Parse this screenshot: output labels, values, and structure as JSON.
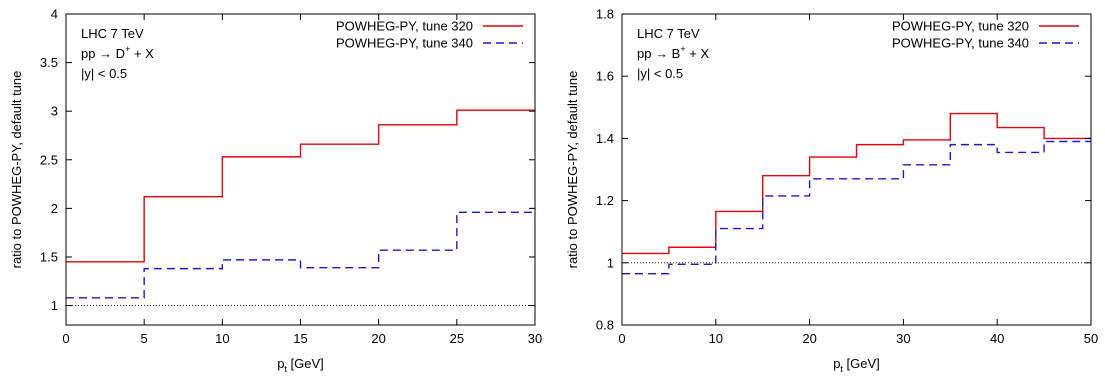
{
  "colors": {
    "tune320": "#e8000b",
    "tune340": "#1a1acc",
    "reference": "#000000"
  },
  "chart_data": [
    {
      "type": "line",
      "step": true,
      "xlabel_main": "p",
      "xlabel_sub": "t",
      "xlabel_rest": " [GeV]",
      "ylabel": "ratio to POWHEG-PY, default tune",
      "xlim": [
        0,
        30
      ],
      "ylim": [
        0.8,
        4
      ],
      "xticks": [
        "0",
        "5",
        "10",
        "15",
        "20",
        "25",
        "30"
      ],
      "yticks": [
        "1",
        "1.5",
        "2",
        "2.5",
        "3",
        "3.5",
        "4"
      ],
      "annotations": {
        "line1": "LHC 7 TeV",
        "line2_pre": "pp → D",
        "line2_sup": "+",
        "line2_post": " + X",
        "line3": "|y| < 0.5"
      },
      "reference_line": 1,
      "bin_edges": [
        0,
        5,
        10,
        15,
        20,
        25,
        30
      ],
      "series": [
        {
          "name": "POWHEG-PY, tune 320",
          "style": "solid",
          "values": [
            1.45,
            2.12,
            2.53,
            2.66,
            2.86,
            3.01
          ]
        },
        {
          "name": "POWHEG-PY, tune 340",
          "style": "dashed",
          "values": [
            1.08,
            1.38,
            1.47,
            1.39,
            1.57,
            1.96
          ]
        }
      ],
      "legend": "top-right"
    },
    {
      "type": "line",
      "step": true,
      "xlabel_main": "p",
      "xlabel_sub": "t",
      "xlabel_rest": " [GeV]",
      "ylabel": "ratio to POWHEG-PY, default tune",
      "xlim": [
        0,
        50
      ],
      "ylim": [
        0.8,
        1.8
      ],
      "xticks": [
        "0",
        "10",
        "20",
        "30",
        "40",
        "50"
      ],
      "yticks": [
        "0.8",
        "1",
        "1.2",
        "1.4",
        "1.6",
        "1.8"
      ],
      "annotations": {
        "line1": "LHC 7 TeV",
        "line2_pre": "pp → B",
        "line2_sup": "+",
        "line2_post": " + X",
        "line3": "|y| < 0.5"
      },
      "reference_line": 1,
      "bin_edges": [
        0,
        5,
        10,
        15,
        20,
        25,
        30,
        35,
        40,
        45,
        50
      ],
      "series": [
        {
          "name": "POWHEG-PY, tune 320",
          "style": "solid",
          "values": [
            1.03,
            1.05,
            1.165,
            1.28,
            1.34,
            1.38,
            1.395,
            1.48,
            1.435,
            1.4
          ]
        },
        {
          "name": "POWHEG-PY, tune 340",
          "style": "dashed",
          "values": [
            0.965,
            0.995,
            1.11,
            1.215,
            1.27,
            1.27,
            1.315,
            1.38,
            1.355,
            1.39
          ]
        }
      ],
      "legend": "top-right"
    }
  ]
}
